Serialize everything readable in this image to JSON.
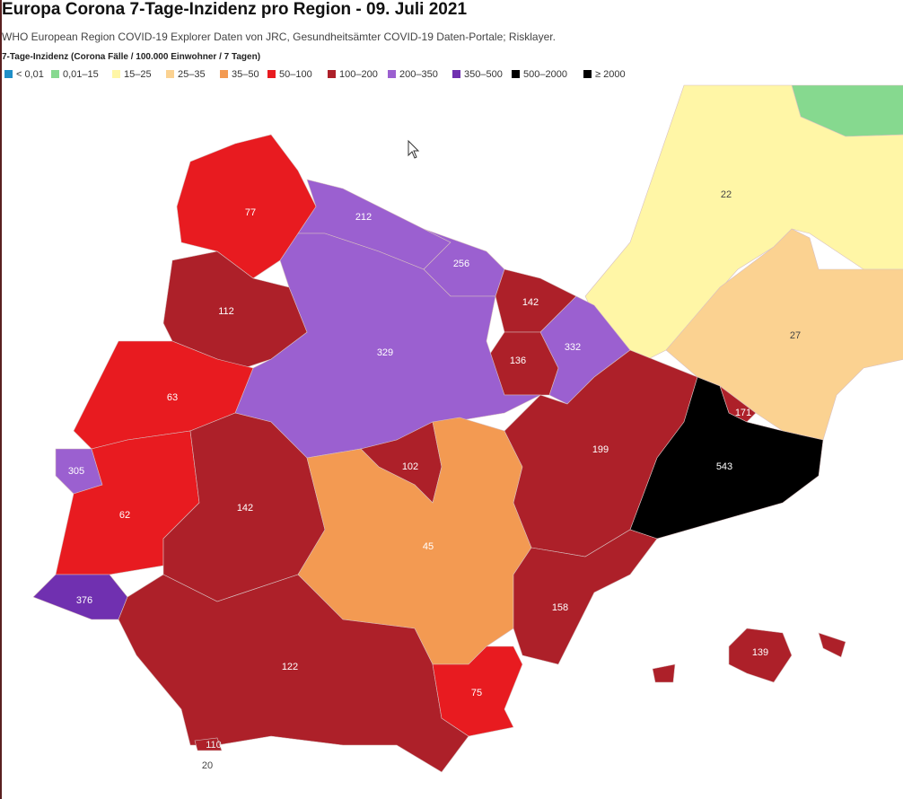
{
  "title": "Europa Corona 7-Tage-Inzidenz pro Region - 09. Juli 2021",
  "subtitle": "WHO European Region COVID-19 Explorer Daten von JRC, Gesundheitsämter COVID-19  Daten-Portale; Risklayer.",
  "legend": {
    "title": "7-Tage-Inzidenz (Corona Fälle / 100.000 Einwohner / 7 Tagen)",
    "entries": [
      {
        "label": "< 0,01",
        "color": "#1f8fc8"
      },
      {
        "label": "0,01–15",
        "color": "#86d98f"
      },
      {
        "label": "15–25",
        "color": "#fff6a6"
      },
      {
        "label": "25–35",
        "color": "#fbd291"
      },
      {
        "label": "35–50",
        "color": "#f39a52"
      },
      {
        "label": "50–100",
        "color": "#e81b20"
      },
      {
        "label": "100–200",
        "color": "#ad2029"
      },
      {
        "label": "200–350",
        "color": "#9b60d0"
      },
      {
        "label": "350–500",
        "color": "#7030b0"
      },
      {
        "label": "500–2000",
        "color": "#000000"
      },
      {
        "label": "≥ 2000",
        "color": "#000000"
      }
    ]
  },
  "regions": [
    {
      "value": 22,
      "color": "#fff6a6"
    },
    {
      "value": 27,
      "color": "#fbd291"
    },
    {
      "value": 212,
      "color": "#9b60d0"
    },
    {
      "value": 256,
      "color": "#9b60d0"
    },
    {
      "value": 142,
      "color": "#ad2029"
    },
    {
      "value": 332,
      "color": "#9b60d0"
    },
    {
      "value": 136,
      "color": "#ad2029"
    },
    {
      "value": 329,
      "color": "#9b60d0"
    },
    {
      "value": 77,
      "color": "#e81b20"
    },
    {
      "value": 112,
      "color": "#ad2029"
    },
    {
      "value": 63,
      "color": "#e81b20"
    },
    {
      "value": 305,
      "color": "#9b60d0"
    },
    {
      "value": 62,
      "color": "#e81b20"
    },
    {
      "value": 142,
      "color": "#ad2029"
    },
    {
      "value": 102,
      "color": "#ad2029"
    },
    {
      "value": 45,
      "color": "#f39a52"
    },
    {
      "value": 199,
      "color": "#ad2029"
    },
    {
      "value": 171,
      "color": "#ad2029"
    },
    {
      "value": 543,
      "color": "#000000"
    },
    {
      "value": 158,
      "color": "#ad2029"
    },
    {
      "value": 376,
      "color": "#7030b0"
    },
    {
      "value": 122,
      "color": "#ad2029"
    },
    {
      "value": 75,
      "color": "#e81b20"
    },
    {
      "value": 139,
      "color": "#ad2029"
    },
    {
      "value": 110,
      "color": "#ad2029"
    },
    {
      "value": 20
    }
  ]
}
